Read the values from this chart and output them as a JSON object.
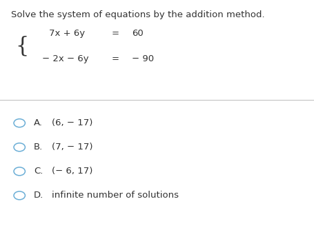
{
  "title": "Solve the system of equations by the addition method.",
  "eq1_parts": [
    "7x + 6y",
    "=",
    "60"
  ],
  "eq2_parts": [
    "− 2x − 6y",
    "=",
    "− 90"
  ],
  "options": [
    {
      "label": "A.",
      "text": "(6, − 17)"
    },
    {
      "label": "B.",
      "text": "(7, − 17)"
    },
    {
      "label": "C.",
      "text": "(− 6, 17)"
    },
    {
      "label": "D.",
      "text": "infinite number of solutions"
    }
  ],
  "background_color": "#ffffff",
  "text_color": "#333333",
  "circle_color": "#6baed6",
  "title_fontsize": 9.5,
  "eq_fontsize": 9.5,
  "options_fontsize": 9.5,
  "brace_fontsize": 22
}
